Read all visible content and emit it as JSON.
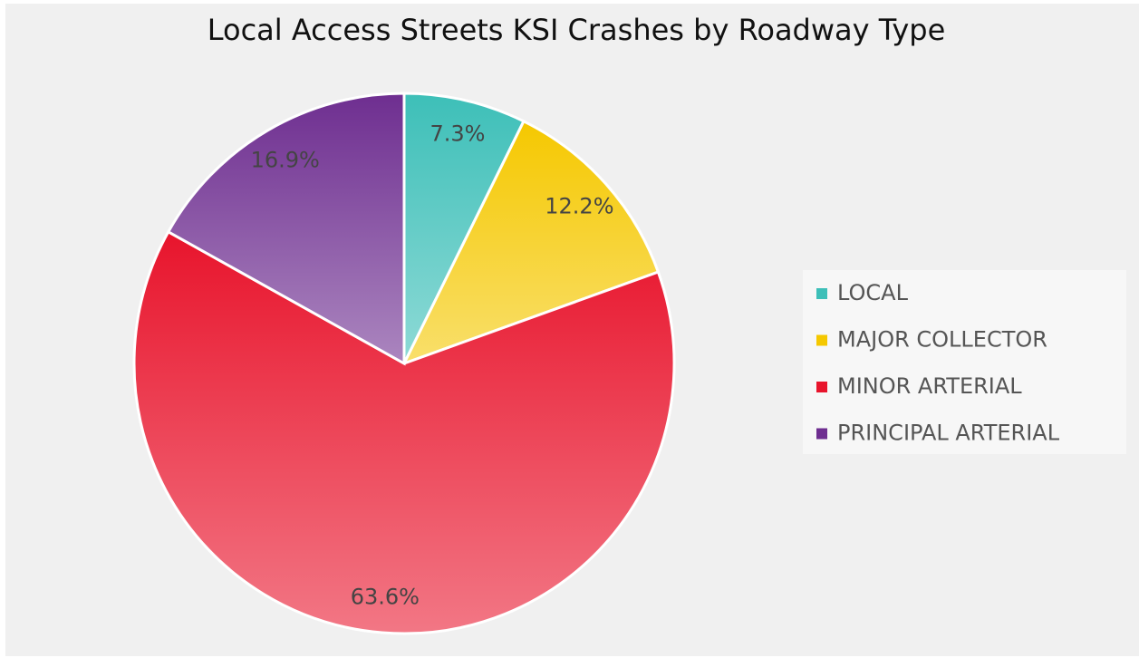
{
  "chart_data": {
    "type": "pie",
    "title": "Local Access Streets KSI Crashes by Roadway Type",
    "categories": [
      "LOCAL",
      "MAJOR COLLECTOR",
      "MINOR ARTERIAL",
      "PRINCIPAL ARTERIAL"
    ],
    "values": [
      7.3,
      12.2,
      63.6,
      16.9
    ],
    "value_labels": [
      "7.3%",
      "12.2%",
      "63.6%",
      "16.9%"
    ],
    "colors": [
      "#3dbfb8",
      "#f5c800",
      "#e8142c",
      "#6e2e90"
    ],
    "legend": "right"
  }
}
